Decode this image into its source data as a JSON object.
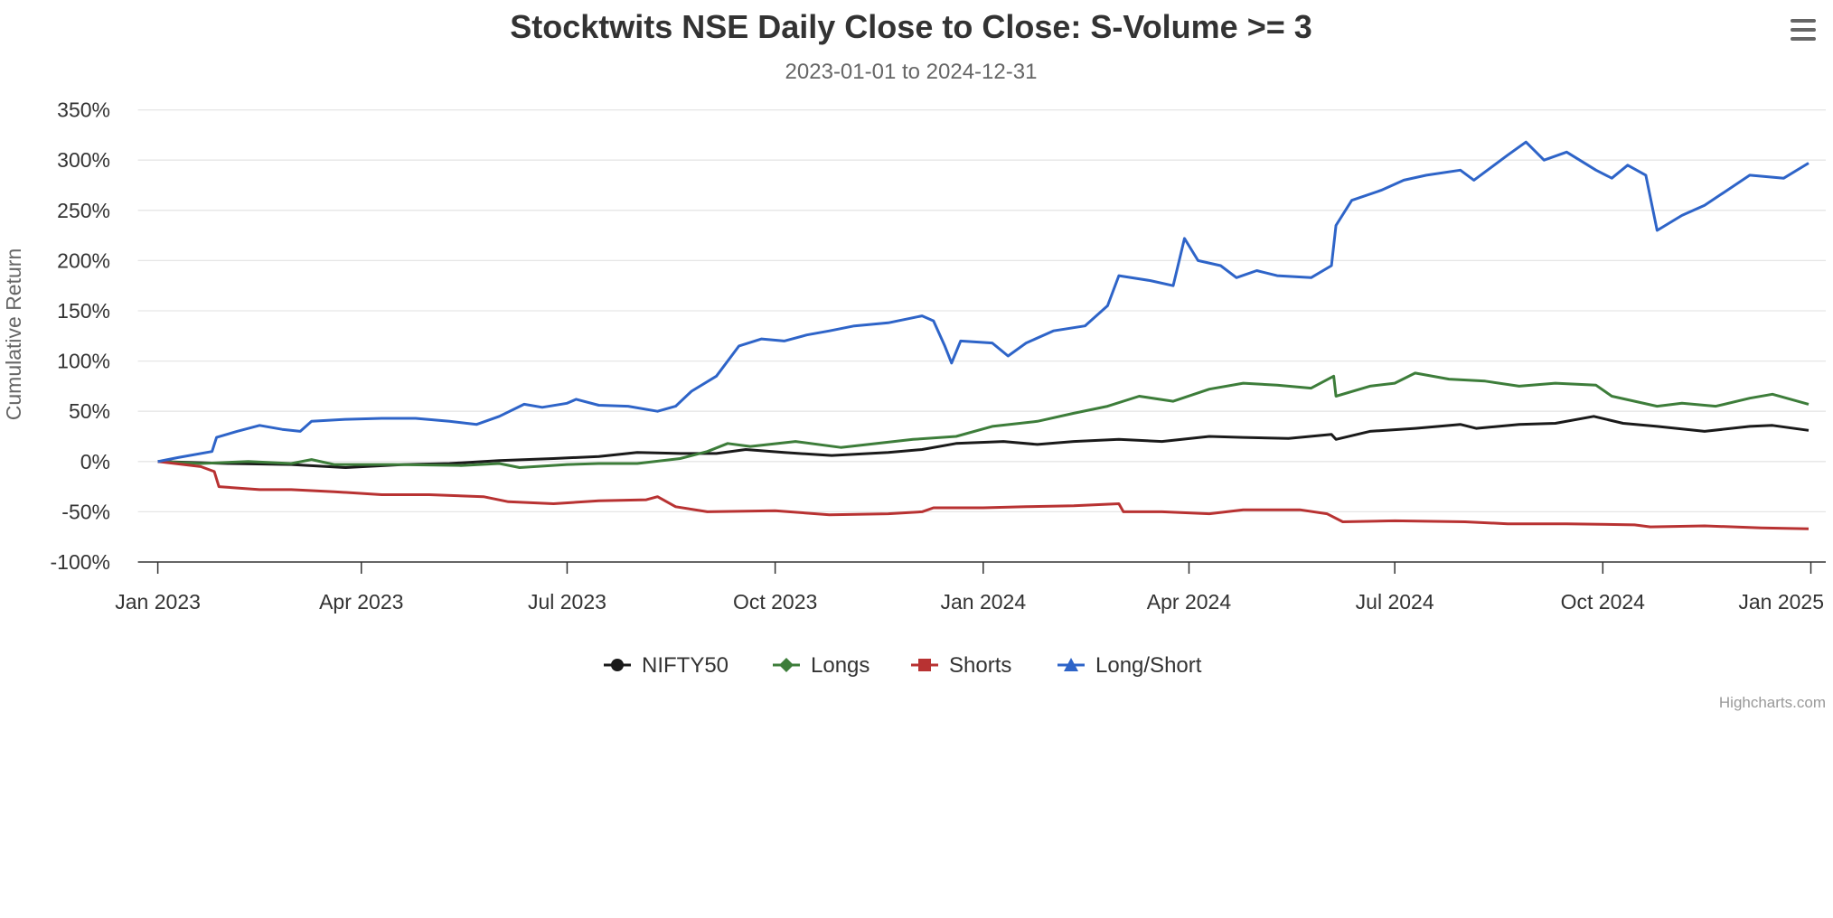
{
  "chart_data": {
    "type": "line",
    "title": "Stocktwits NSE Daily Close to Close: S-Volume >= 3",
    "subtitle": "2023-01-01 to 2024-12-31",
    "xlabel": "",
    "ylabel": "Cumulative Return",
    "xlim": [
      "2023-01-01",
      "2025-01-01"
    ],
    "ylim": [
      -100,
      350
    ],
    "x_ticks": [
      {
        "date": "2023-01-01",
        "label": "Jan 2023"
      },
      {
        "date": "2023-04-01",
        "label": "Apr 2023"
      },
      {
        "date": "2023-07-01",
        "label": "Jul 2023"
      },
      {
        "date": "2023-10-01",
        "label": "Oct 2023"
      },
      {
        "date": "2024-01-01",
        "label": "Jan 2024"
      },
      {
        "date": "2024-04-01",
        "label": "Apr 2024"
      },
      {
        "date": "2024-07-01",
        "label": "Jul 2024"
      },
      {
        "date": "2024-10-01",
        "label": "Oct 2024"
      },
      {
        "date": "2025-01-01",
        "label": "Jan 2025"
      }
    ],
    "y_ticks": [
      {
        "value": 350,
        "label": "350%"
      },
      {
        "value": 300,
        "label": "300%"
      },
      {
        "value": 250,
        "label": "250%"
      },
      {
        "value": 200,
        "label": "200%"
      },
      {
        "value": 150,
        "label": "150%"
      },
      {
        "value": 100,
        "label": "100%"
      },
      {
        "value": 50,
        "label": "50%"
      },
      {
        "value": 0,
        "label": "0%"
      },
      {
        "value": -50,
        "label": "-50%"
      },
      {
        "value": -100,
        "label": "-100%"
      }
    ],
    "grid": true,
    "legend_position": "bottom-center",
    "credits": "Highcharts.com",
    "series": [
      {
        "name": "NIFTY50",
        "color": "#1a1a1a",
        "marker": "circle",
        "points": [
          [
            "2023-01-01",
            0
          ],
          [
            "2023-02-01",
            -2
          ],
          [
            "2023-03-01",
            -3
          ],
          [
            "2023-03-25",
            -6
          ],
          [
            "2023-04-20",
            -3
          ],
          [
            "2023-05-10",
            -2
          ],
          [
            "2023-06-01",
            1
          ],
          [
            "2023-06-25",
            3
          ],
          [
            "2023-07-15",
            5
          ],
          [
            "2023-08-01",
            9
          ],
          [
            "2023-08-20",
            8
          ],
          [
            "2023-09-05",
            8
          ],
          [
            "2023-09-18",
            12
          ],
          [
            "2023-10-05",
            9
          ],
          [
            "2023-10-26",
            6
          ],
          [
            "2023-11-20",
            9
          ],
          [
            "2023-12-05",
            12
          ],
          [
            "2023-12-20",
            18
          ],
          [
            "2024-01-10",
            20
          ],
          [
            "2024-01-25",
            17
          ],
          [
            "2024-02-10",
            20
          ],
          [
            "2024-03-01",
            22
          ],
          [
            "2024-03-20",
            20
          ],
          [
            "2024-04-10",
            25
          ],
          [
            "2024-04-25",
            24
          ],
          [
            "2024-05-15",
            23
          ],
          [
            "2024-06-03",
            27
          ],
          [
            "2024-06-05",
            22
          ],
          [
            "2024-06-20",
            30
          ],
          [
            "2024-07-10",
            33
          ],
          [
            "2024-07-30",
            37
          ],
          [
            "2024-08-06",
            33
          ],
          [
            "2024-08-25",
            37
          ],
          [
            "2024-09-10",
            38
          ],
          [
            "2024-09-27",
            45
          ],
          [
            "2024-10-10",
            38
          ],
          [
            "2024-10-25",
            35
          ],
          [
            "2024-11-15",
            30
          ],
          [
            "2024-12-05",
            35
          ],
          [
            "2024-12-15",
            36
          ],
          [
            "2024-12-31",
            31
          ]
        ]
      },
      {
        "name": "Longs",
        "color": "#3d7d3a",
        "marker": "diamond",
        "points": [
          [
            "2023-01-01",
            0
          ],
          [
            "2023-01-20",
            -2
          ],
          [
            "2023-02-10",
            0
          ],
          [
            "2023-03-01",
            -2
          ],
          [
            "2023-03-10",
            2
          ],
          [
            "2023-03-20",
            -3
          ],
          [
            "2023-04-15",
            -3
          ],
          [
            "2023-05-15",
            -4
          ],
          [
            "2023-06-01",
            -2
          ],
          [
            "2023-06-10",
            -6
          ],
          [
            "2023-07-01",
            -3
          ],
          [
            "2023-07-15",
            -2
          ],
          [
            "2023-08-01",
            -2
          ],
          [
            "2023-08-20",
            3
          ],
          [
            "2023-09-01",
            10
          ],
          [
            "2023-09-10",
            18
          ],
          [
            "2023-09-20",
            15
          ],
          [
            "2023-10-10",
            20
          ],
          [
            "2023-10-30",
            14
          ],
          [
            "2023-11-15",
            18
          ],
          [
            "2023-12-01",
            22
          ],
          [
            "2023-12-20",
            25
          ],
          [
            "2024-01-05",
            35
          ],
          [
            "2024-01-25",
            40
          ],
          [
            "2024-02-10",
            48
          ],
          [
            "2024-02-25",
            55
          ],
          [
            "2024-03-10",
            65
          ],
          [
            "2024-03-25",
            60
          ],
          [
            "2024-04-10",
            72
          ],
          [
            "2024-04-25",
            78
          ],
          [
            "2024-05-10",
            76
          ],
          [
            "2024-05-25",
            73
          ],
          [
            "2024-06-04",
            85
          ],
          [
            "2024-06-05",
            65
          ],
          [
            "2024-06-20",
            75
          ],
          [
            "2024-07-01",
            78
          ],
          [
            "2024-07-10",
            88
          ],
          [
            "2024-07-25",
            82
          ],
          [
            "2024-08-10",
            80
          ],
          [
            "2024-08-25",
            75
          ],
          [
            "2024-09-10",
            78
          ],
          [
            "2024-09-28",
            76
          ],
          [
            "2024-10-05",
            65
          ],
          [
            "2024-10-25",
            55
          ],
          [
            "2024-11-05",
            58
          ],
          [
            "2024-11-20",
            55
          ],
          [
            "2024-12-05",
            63
          ],
          [
            "2024-12-15",
            67
          ],
          [
            "2024-12-31",
            57
          ]
        ]
      },
      {
        "name": "Shorts",
        "color": "#b83232",
        "marker": "square",
        "points": [
          [
            "2023-01-01",
            0
          ],
          [
            "2023-01-20",
            -5
          ],
          [
            "2023-01-26",
            -10
          ],
          [
            "2023-01-28",
            -25
          ],
          [
            "2023-02-15",
            -28
          ],
          [
            "2023-03-01",
            -28
          ],
          [
            "2023-03-20",
            -30
          ],
          [
            "2023-04-10",
            -33
          ],
          [
            "2023-05-01",
            -33
          ],
          [
            "2023-05-25",
            -35
          ],
          [
            "2023-06-05",
            -40
          ],
          [
            "2023-06-25",
            -42
          ],
          [
            "2023-07-15",
            -39
          ],
          [
            "2023-08-05",
            -38
          ],
          [
            "2023-08-10",
            -35
          ],
          [
            "2023-08-18",
            -45
          ],
          [
            "2023-09-01",
            -50
          ],
          [
            "2023-10-01",
            -49
          ],
          [
            "2023-10-25",
            -53
          ],
          [
            "2023-11-20",
            -52
          ],
          [
            "2023-12-05",
            -50
          ],
          [
            "2023-12-10",
            -46
          ],
          [
            "2024-01-01",
            -46
          ],
          [
            "2024-01-20",
            -45
          ],
          [
            "2024-02-10",
            -44
          ],
          [
            "2024-03-01",
            -42
          ],
          [
            "2024-03-03",
            -50
          ],
          [
            "2024-03-20",
            -50
          ],
          [
            "2024-04-10",
            -52
          ],
          [
            "2024-04-25",
            -48
          ],
          [
            "2024-05-20",
            -48
          ],
          [
            "2024-06-01",
            -52
          ],
          [
            "2024-06-08",
            -60
          ],
          [
            "2024-07-01",
            -59
          ],
          [
            "2024-08-01",
            -60
          ],
          [
            "2024-08-20",
            -62
          ],
          [
            "2024-09-15",
            -62
          ],
          [
            "2024-10-15",
            -63
          ],
          [
            "2024-10-22",
            -65
          ],
          [
            "2024-11-15",
            -64
          ],
          [
            "2024-12-10",
            -66
          ],
          [
            "2024-12-31",
            -67
          ]
        ]
      },
      {
        "name": "Long/Short",
        "color": "#2e64c8",
        "marker": "triangle",
        "points": [
          [
            "2023-01-01",
            0
          ],
          [
            "2023-01-10",
            4
          ],
          [
            "2023-01-25",
            10
          ],
          [
            "2023-01-27",
            24
          ],
          [
            "2023-02-05",
            30
          ],
          [
            "2023-02-15",
            36
          ],
          [
            "2023-02-25",
            32
          ],
          [
            "2023-03-05",
            30
          ],
          [
            "2023-03-10",
            40
          ],
          [
            "2023-03-25",
            42
          ],
          [
            "2023-04-10",
            43
          ],
          [
            "2023-04-25",
            43
          ],
          [
            "2023-05-10",
            40
          ],
          [
            "2023-05-22",
            37
          ],
          [
            "2023-06-01",
            45
          ],
          [
            "2023-06-12",
            57
          ],
          [
            "2023-06-20",
            54
          ],
          [
            "2023-07-01",
            58
          ],
          [
            "2023-07-05",
            62
          ],
          [
            "2023-07-15",
            56
          ],
          [
            "2023-07-28",
            55
          ],
          [
            "2023-08-10",
            50
          ],
          [
            "2023-08-18",
            55
          ],
          [
            "2023-08-25",
            70
          ],
          [
            "2023-09-05",
            85
          ],
          [
            "2023-09-15",
            115
          ],
          [
            "2023-09-25",
            122
          ],
          [
            "2023-10-05",
            120
          ],
          [
            "2023-10-15",
            126
          ],
          [
            "2023-10-25",
            130
          ],
          [
            "2023-11-05",
            135
          ],
          [
            "2023-11-20",
            138
          ],
          [
            "2023-12-05",
            145
          ],
          [
            "2023-12-10",
            140
          ],
          [
            "2023-12-15",
            115
          ],
          [
            "2023-12-18",
            98
          ],
          [
            "2023-12-22",
            120
          ],
          [
            "2024-01-05",
            118
          ],
          [
            "2024-01-12",
            105
          ],
          [
            "2024-01-20",
            118
          ],
          [
            "2024-02-01",
            130
          ],
          [
            "2024-02-15",
            135
          ],
          [
            "2024-02-25",
            155
          ],
          [
            "2024-03-01",
            185
          ],
          [
            "2024-03-15",
            180
          ],
          [
            "2024-03-25",
            175
          ],
          [
            "2024-03-30",
            222
          ],
          [
            "2024-04-05",
            200
          ],
          [
            "2024-04-15",
            195
          ],
          [
            "2024-04-22",
            183
          ],
          [
            "2024-05-01",
            190
          ],
          [
            "2024-05-10",
            185
          ],
          [
            "2024-05-25",
            183
          ],
          [
            "2024-06-03",
            195
          ],
          [
            "2024-06-05",
            235
          ],
          [
            "2024-06-12",
            260
          ],
          [
            "2024-06-25",
            270
          ],
          [
            "2024-07-05",
            280
          ],
          [
            "2024-07-15",
            285
          ],
          [
            "2024-07-30",
            290
          ],
          [
            "2024-08-05",
            280
          ],
          [
            "2024-08-20",
            305
          ],
          [
            "2024-08-28",
            318
          ],
          [
            "2024-09-05",
            300
          ],
          [
            "2024-09-15",
            308
          ],
          [
            "2024-09-28",
            290
          ],
          [
            "2024-10-05",
            282
          ],
          [
            "2024-10-12",
            295
          ],
          [
            "2024-10-20",
            285
          ],
          [
            "2024-10-25",
            230
          ],
          [
            "2024-11-05",
            245
          ],
          [
            "2024-11-15",
            255
          ],
          [
            "2024-11-25",
            270
          ],
          [
            "2024-12-05",
            285
          ],
          [
            "2024-12-20",
            282
          ],
          [
            "2024-12-31",
            297
          ]
        ]
      }
    ]
  },
  "menu": {
    "icon": "hamburger-menu-icon"
  }
}
